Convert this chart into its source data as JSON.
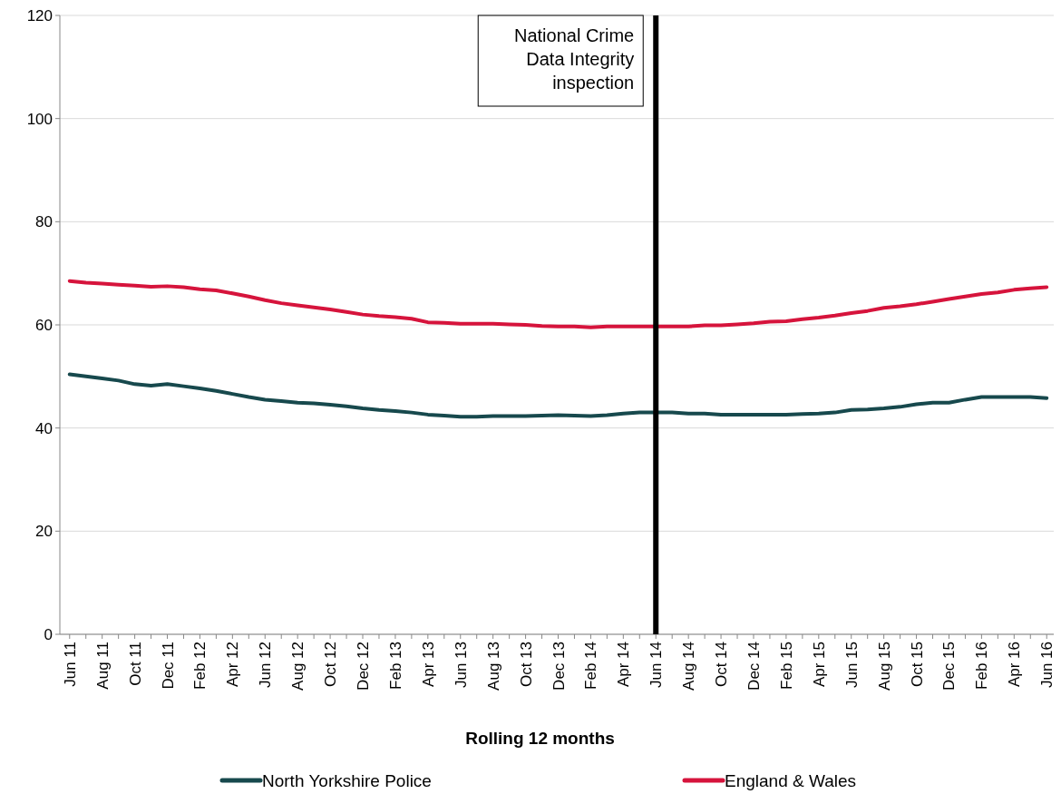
{
  "chart_data": {
    "type": "line",
    "xlabel": "Rolling 12 months",
    "categories": [
      "Jun 11",
      null,
      "Aug 11",
      null,
      "Oct 11",
      null,
      "Dec 11",
      null,
      "Feb 12",
      null,
      "Apr 12",
      null,
      "Jun 12",
      null,
      "Aug 12",
      null,
      "Oct 12",
      null,
      "Dec 12",
      null,
      "Feb 13",
      null,
      "Apr 13",
      null,
      "Jun 13",
      null,
      "Aug 13",
      null,
      "Oct 13",
      null,
      "Dec 13",
      null,
      "Feb 14",
      null,
      "Apr 14",
      null,
      "Jun 14",
      null,
      "Aug 14",
      null,
      "Oct 14",
      null,
      "Dec 14",
      null,
      "Feb 15",
      null,
      "Apr 15",
      null,
      "Jun 15",
      null,
      "Aug 15",
      null,
      "Oct 15",
      null,
      "Dec 15",
      null,
      "Feb 16",
      null,
      "Apr 16",
      null,
      "Jun 16"
    ],
    "series": [
      {
        "name": "North Yorkshire Police",
        "color": "#17494d",
        "values": [
          50.4,
          50.0,
          49.6,
          49.2,
          48.5,
          48.2,
          48.5,
          48.1,
          47.7,
          47.2,
          46.6,
          46.0,
          45.5,
          45.2,
          44.9,
          44.8,
          44.5,
          44.2,
          43.8,
          43.5,
          43.3,
          43.0,
          42.6,
          42.4,
          42.2,
          42.2,
          42.3,
          42.3,
          42.3,
          42.4,
          42.5,
          42.4,
          42.3,
          42.5,
          42.8,
          43.0,
          43.0,
          43.0,
          42.8,
          42.8,
          42.6,
          42.6,
          42.6,
          42.6,
          42.6,
          42.7,
          42.8,
          43.0,
          43.5,
          43.6,
          43.8,
          44.1,
          44.6,
          44.9,
          44.9,
          45.5,
          46.0,
          46.0,
          46.0,
          46.0,
          45.8
        ]
      },
      {
        "name": "England & Wales",
        "color": "#d6143c",
        "values": [
          68.5,
          68.2,
          68.0,
          67.8,
          67.6,
          67.4,
          67.5,
          67.3,
          66.9,
          66.7,
          66.1,
          65.5,
          64.8,
          64.2,
          63.8,
          63.4,
          63.0,
          62.5,
          62.0,
          61.7,
          61.5,
          61.2,
          60.5,
          60.4,
          60.2,
          60.2,
          60.2,
          60.1,
          60.0,
          59.8,
          59.7,
          59.7,
          59.5,
          59.7,
          59.7,
          59.7,
          59.7,
          59.7,
          59.7,
          59.9,
          59.9,
          60.1,
          60.3,
          60.6,
          60.7,
          61.1,
          61.4,
          61.8,
          62.3,
          62.7,
          63.3,
          63.6,
          64.0,
          64.5,
          65.0,
          65.5,
          66.0,
          66.3,
          66.8,
          67.1,
          67.3
        ]
      }
    ],
    "ylim": [
      0,
      120
    ],
    "yticks": [
      0,
      20,
      40,
      60,
      80,
      100,
      120
    ],
    "grid": "y",
    "legend": "bottom",
    "marker": "none",
    "line_style": "solid",
    "ref_lines": [
      {
        "axis": "x",
        "value": "Jun 14",
        "label": "National Crime Data Integrity inspection",
        "color": "#000000"
      }
    ]
  }
}
